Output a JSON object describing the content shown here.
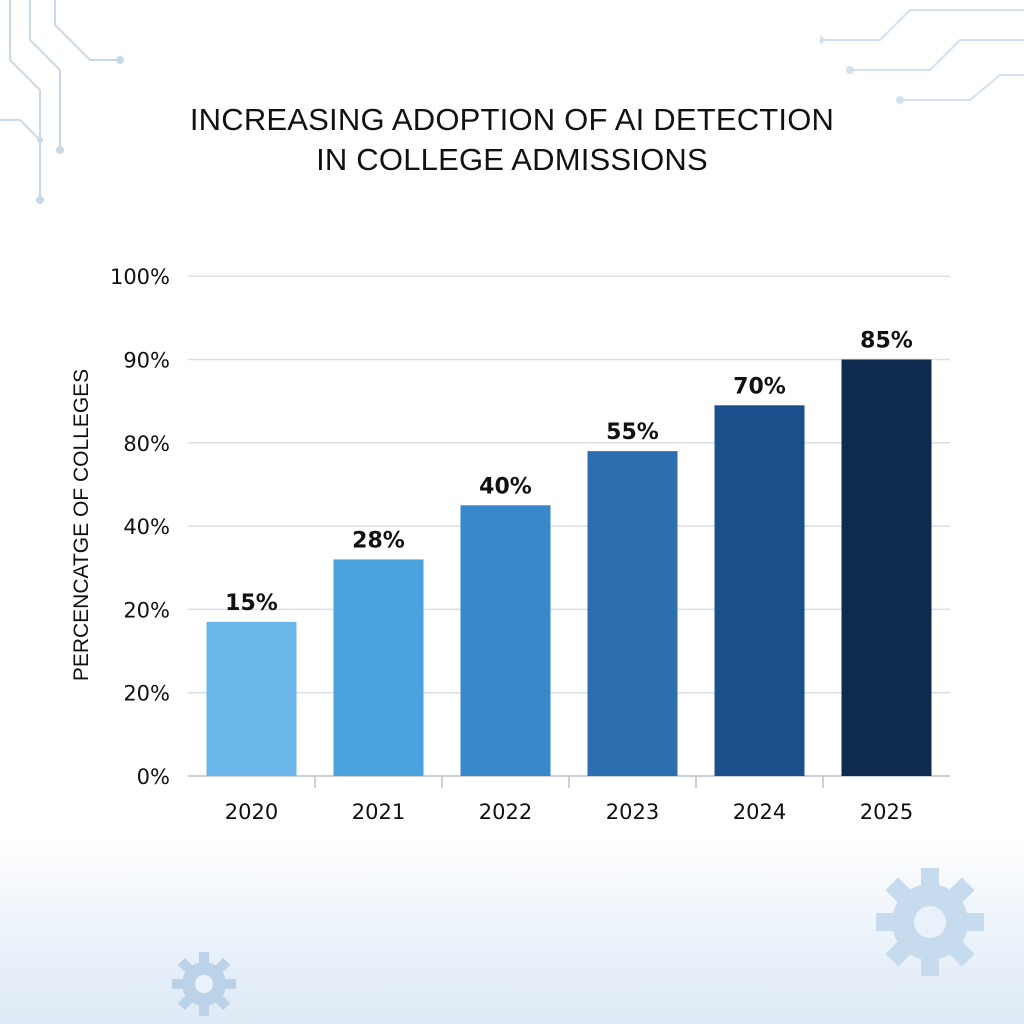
{
  "colors": {
    "bars": [
      "#6bb6ea",
      "#4aa2df",
      "#3a88cc",
      "#2d6fae",
      "#1b4f8c",
      "#0f2a4f"
    ],
    "grid": "#d9dfe6",
    "axis": "#b8c0c8"
  },
  "decor": {
    "icons": [
      "circuit-lines-icon",
      "gear-icon"
    ]
  },
  "chart_data": {
    "type": "bar",
    "title": "INCREASING ADOPTION OF AI DETECTION IN COLLEGE ADMISSIONS",
    "title_lines": [
      "INCREASING ADOPTION OF AI DETECTION",
      "IN COLLEGE ADMISSIONS"
    ],
    "xlabel": "",
    "ylabel": "PERCENCATGE OF COLLEGES",
    "categories": [
      "2020",
      "2021",
      "2022",
      "2023",
      "2024",
      "2025"
    ],
    "values": [
      15,
      28,
      40,
      55,
      70,
      85
    ],
    "data_labels": [
      "15%",
      "28%",
      "40%",
      "55%",
      "70%",
      "85%"
    ],
    "bar_levels": [
      1.85,
      2.6,
      3.25,
      3.9,
      4.45,
      5.0
    ],
    "y_ticks": [
      "0%",
      "20%",
      "20%",
      "40%",
      "80%",
      "90%",
      "100%"
    ],
    "grid": true
  }
}
